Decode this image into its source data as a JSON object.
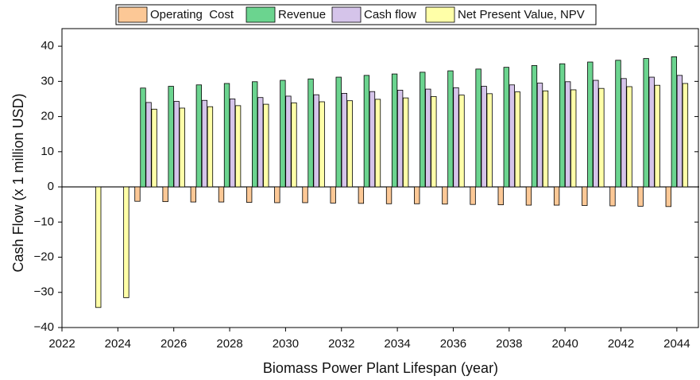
{
  "chart_data": {
    "type": "bar",
    "xlabel": "Biomass Power Plant Lifespan (year)",
    "ylabel": "Cash Flow (x 1 million USD)",
    "x": [
      2023,
      2024,
      2025,
      2026,
      2027,
      2028,
      2029,
      2030,
      2031,
      2032,
      2033,
      2034,
      2035,
      2036,
      2037,
      2038,
      2039,
      2040,
      2041,
      2042,
      2043,
      2044
    ],
    "series": [
      {
        "name": "Operating  Cost",
        "color": "#fcc896",
        "values": [
          null,
          null,
          -4.1,
          -4.2,
          -4.3,
          -4.3,
          -4.4,
          -4.5,
          -4.5,
          -4.6,
          -4.7,
          -4.8,
          -4.8,
          -4.9,
          -5.0,
          -5.1,
          -5.2,
          -5.2,
          -5.3,
          -5.4,
          -5.5,
          -5.6
        ]
      },
      {
        "name": "Revenue",
        "color": "#6bd48f",
        "values": [
          null,
          null,
          28.1,
          28.6,
          29.0,
          29.4,
          29.9,
          30.3,
          30.7,
          31.2,
          31.7,
          32.1,
          32.6,
          33.0,
          33.5,
          34.0,
          34.5,
          35.0,
          35.5,
          36.0,
          36.5,
          37.0
        ]
      },
      {
        "name": "Cash flow",
        "color": "#d5c4ea",
        "values": [
          null,
          null,
          24.0,
          24.3,
          24.6,
          25.0,
          25.4,
          25.8,
          26.2,
          26.6,
          27.1,
          27.5,
          27.8,
          28.2,
          28.6,
          29.0,
          29.5,
          29.9,
          30.3,
          30.8,
          31.2,
          31.7
        ]
      },
      {
        "name": "Net Present Value, NPV",
        "color": "#ffffa8",
        "values": [
          -34.3,
          -31.5,
          22.1,
          22.4,
          22.8,
          23.1,
          23.5,
          23.9,
          24.2,
          24.5,
          24.9,
          25.3,
          25.7,
          26.1,
          26.5,
          27.0,
          27.3,
          27.6,
          28.0,
          28.5,
          28.9,
          29.4
        ]
      }
    ],
    "xlim": [
      2022,
      2044.8
    ],
    "xticks": [
      2022,
      2024,
      2026,
      2028,
      2030,
      2032,
      2034,
      2036,
      2038,
      2040,
      2042,
      2044
    ],
    "ylim": [
      -40,
      45
    ],
    "yticks": [
      {
        "value": -40,
        "label": "−40"
      },
      {
        "value": -30,
        "label": "−30"
      },
      {
        "value": -20,
        "label": "−20"
      },
      {
        "value": -10,
        "label": "−10"
      },
      0,
      10,
      20,
      30,
      40
    ],
    "legend": "top"
  }
}
